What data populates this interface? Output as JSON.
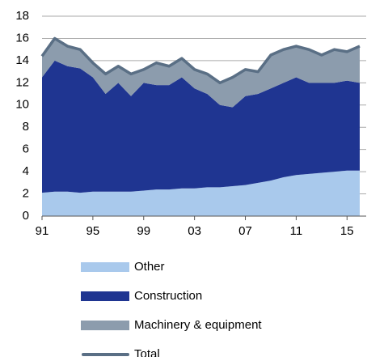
{
  "chart_data": {
    "type": "stacked_area",
    "x": [
      1991,
      1992,
      1993,
      1994,
      1995,
      1996,
      1997,
      1998,
      1999,
      2000,
      2001,
      2002,
      2003,
      2004,
      2005,
      2006,
      2007,
      2008,
      2009,
      2010,
      2011,
      2012,
      2013,
      2014,
      2015,
      2016
    ],
    "series": [
      {
        "name": "Other",
        "color": "#a9c9ec",
        "values": [
          2.1,
          2.2,
          2.2,
          2.1,
          2.2,
          2.2,
          2.2,
          2.2,
          2.3,
          2.4,
          2.4,
          2.5,
          2.5,
          2.6,
          2.6,
          2.7,
          2.8,
          3.0,
          3.2,
          3.5,
          3.7,
          3.8,
          3.9,
          4.0,
          4.1,
          4.1
        ]
      },
      {
        "name": "Construction",
        "color": "#1f3591",
        "values": [
          10.4,
          11.8,
          11.3,
          11.2,
          10.3,
          8.8,
          9.8,
          8.6,
          9.7,
          9.4,
          9.4,
          10.0,
          9.0,
          8.4,
          7.4,
          7.1,
          8.0,
          8.0,
          8.3,
          8.5,
          8.8,
          8.2,
          8.1,
          8.0,
          8.1,
          7.9
        ]
      },
      {
        "name": "Machinery & equipment",
        "color": "#8c9cad",
        "values": [
          1.9,
          2.0,
          1.8,
          1.7,
          1.3,
          1.8,
          1.5,
          2.0,
          1.2,
          2.0,
          1.7,
          1.7,
          1.7,
          1.8,
          2.0,
          2.7,
          2.4,
          2.0,
          3.0,
          3.0,
          2.8,
          3.0,
          2.5,
          3.0,
          2.6,
          3.3
        ]
      },
      {
        "name": "Total",
        "color": "#5a6f85",
        "line": true,
        "values": [
          14.4,
          16.0,
          15.3,
          15.0,
          13.8,
          12.8,
          13.5,
          12.8,
          13.2,
          13.8,
          13.5,
          14.2,
          13.2,
          12.8,
          12.0,
          12.5,
          13.2,
          13.0,
          14.5,
          15.0,
          15.3,
          15.0,
          14.5,
          15.0,
          14.8,
          15.3
        ]
      }
    ],
    "xlim": [
      1991,
      2016
    ],
    "xticks": [
      {
        "value": 1991,
        "label": "91"
      },
      {
        "value": 1995,
        "label": "95"
      },
      {
        "value": 1999,
        "label": "99"
      },
      {
        "value": 2003,
        "label": "03"
      },
      {
        "value": 2007,
        "label": "07"
      },
      {
        "value": 2011,
        "label": "11"
      },
      {
        "value": 2015,
        "label": "15"
      }
    ],
    "ylim": [
      0,
      18
    ],
    "yticks": [
      0,
      2,
      4,
      6,
      8,
      10,
      12,
      14,
      16,
      18
    ],
    "grid": true
  }
}
